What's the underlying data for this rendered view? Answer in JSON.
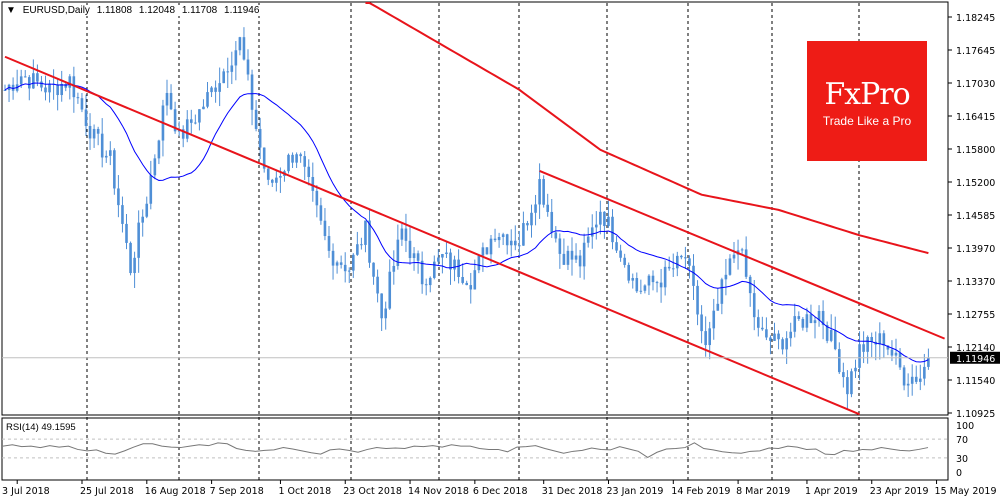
{
  "header": {
    "symbol": "EURUSD,Daily",
    "open": "1.11808",
    "high": "1.12048",
    "low": "1.11708",
    "close": "1.11946"
  },
  "logo": {
    "brand": "FxPro",
    "tagline": "Trade Like a Pro"
  },
  "colors": {
    "up": "#4f8fd6",
    "ma_fast": "#0000ff",
    "ma_slow": "#e8141b",
    "channel": "#e8141b",
    "logo_bg": "#ee1c16"
  },
  "chart_data": {
    "type": "candlestick",
    "title": "EURUSD,Daily",
    "y_ticks": [
      "1.18245",
      "1.17645",
      "1.17030",
      "1.16415",
      "1.15800",
      "1.15200",
      "1.14585",
      "1.13970",
      "1.13370",
      "1.12755",
      "1.12140",
      "1.11540",
      "1.10925"
    ],
    "ylim": [
      1.10925,
      1.18245
    ],
    "current_price": "1.11946",
    "x_ticks": [
      "3 Jul 2018",
      "25 Jul 2018",
      "16 Aug 2018",
      "7 Sep 2018",
      "1 Oct 2018",
      "23 Oct 2018",
      "14 Nov 2018",
      "6 Dec 2018",
      "31 Dec 2018",
      "23 Jan 2019",
      "14 Feb 2019",
      "8 Mar 2019",
      "1 Apr 2019",
      "23 Apr 2019",
      "15 May 2019"
    ],
    "x_tick_day_index": [
      4,
      20,
      36,
      52,
      69,
      85,
      101,
      117,
      134,
      150,
      166,
      182,
      199,
      215,
      231
    ],
    "close_waypoints": [
      [
        0,
        1.169
      ],
      [
        4,
        1.1717
      ],
      [
        11,
        1.169
      ],
      [
        16,
        1.1708
      ],
      [
        22,
        1.16
      ],
      [
        26,
        1.156
      ],
      [
        31,
        1.136
      ],
      [
        35,
        1.149
      ],
      [
        40,
        1.169
      ],
      [
        43,
        1.16
      ],
      [
        48,
        1.165
      ],
      [
        54,
        1.1726
      ],
      [
        58,
        1.178
      ],
      [
        62,
        1.162
      ],
      [
        65,
        1.151
      ],
      [
        72,
        1.158
      ],
      [
        75,
        1.151
      ],
      [
        80,
        1.139
      ],
      [
        85,
        1.136
      ],
      [
        89,
        1.143
      ],
      [
        93,
        1.127
      ],
      [
        98,
        1.143
      ],
      [
        103,
        1.134
      ],
      [
        108,
        1.138
      ],
      [
        115,
        1.134
      ],
      [
        121,
        1.143
      ],
      [
        127,
        1.141
      ],
      [
        132,
        1.152
      ],
      [
        137,
        1.139
      ],
      [
        142,
        1.137
      ],
      [
        147,
        1.147
      ],
      [
        151,
        1.141
      ],
      [
        156,
        1.132
      ],
      [
        162,
        1.134
      ],
      [
        168,
        1.138
      ],
      [
        173,
        1.121
      ],
      [
        177,
        1.132
      ],
      [
        181,
        1.141
      ],
      [
        186,
        1.124
      ],
      [
        191,
        1.122
      ],
      [
        196,
        1.126
      ],
      [
        201,
        1.128
      ],
      [
        205,
        1.121
      ],
      [
        208,
        1.114
      ],
      [
        211,
        1.121
      ],
      [
        217,
        1.123
      ],
      [
        222,
        1.116
      ],
      [
        226,
        1.116
      ],
      [
        228,
        1.11946
      ]
    ],
    "ma_slow_waypoints": [
      [
        89,
        1.1855
      ],
      [
        127,
        1.169
      ],
      [
        147,
        1.1579
      ],
      [
        172,
        1.1496
      ],
      [
        191,
        1.1468
      ],
      [
        211,
        1.1421
      ],
      [
        228,
        1.1388
      ]
    ],
    "channel_lines": [
      {
        "from": [
          0,
          1.1751
        ],
        "to": [
          211,
          1.109
        ]
      },
      {
        "from": [
          132,
          1.154
        ],
        "to": [
          232,
          1.123
        ]
      }
    ],
    "rsi": {
      "label": "RSI(14) 49.1595",
      "period": 14,
      "value": 49.1595,
      "levels": [
        70,
        30
      ],
      "ticks": [
        "100",
        "70",
        "30",
        "0"
      ],
      "values": [
        55,
        58,
        54,
        55,
        52,
        56,
        53,
        55,
        48,
        45,
        47,
        40,
        38,
        45,
        53,
        60,
        60,
        55,
        53,
        52,
        55,
        58,
        56,
        62,
        60,
        50,
        46,
        44,
        46,
        47,
        52,
        49,
        45,
        41,
        38,
        47,
        49,
        46,
        42,
        48,
        52,
        50,
        51,
        50,
        55,
        54,
        56,
        53,
        58,
        55,
        55,
        50,
        48,
        48,
        43,
        53,
        54,
        56,
        50,
        45,
        40,
        44,
        46,
        51,
        48,
        47,
        54,
        49,
        44,
        31,
        42,
        49,
        50,
        52,
        62,
        50,
        47,
        43,
        41,
        40,
        44,
        45,
        51,
        50,
        55,
        53,
        48,
        49,
        38,
        37,
        46,
        44,
        48,
        47,
        52,
        49,
        46,
        45,
        48,
        52
      ]
    }
  }
}
